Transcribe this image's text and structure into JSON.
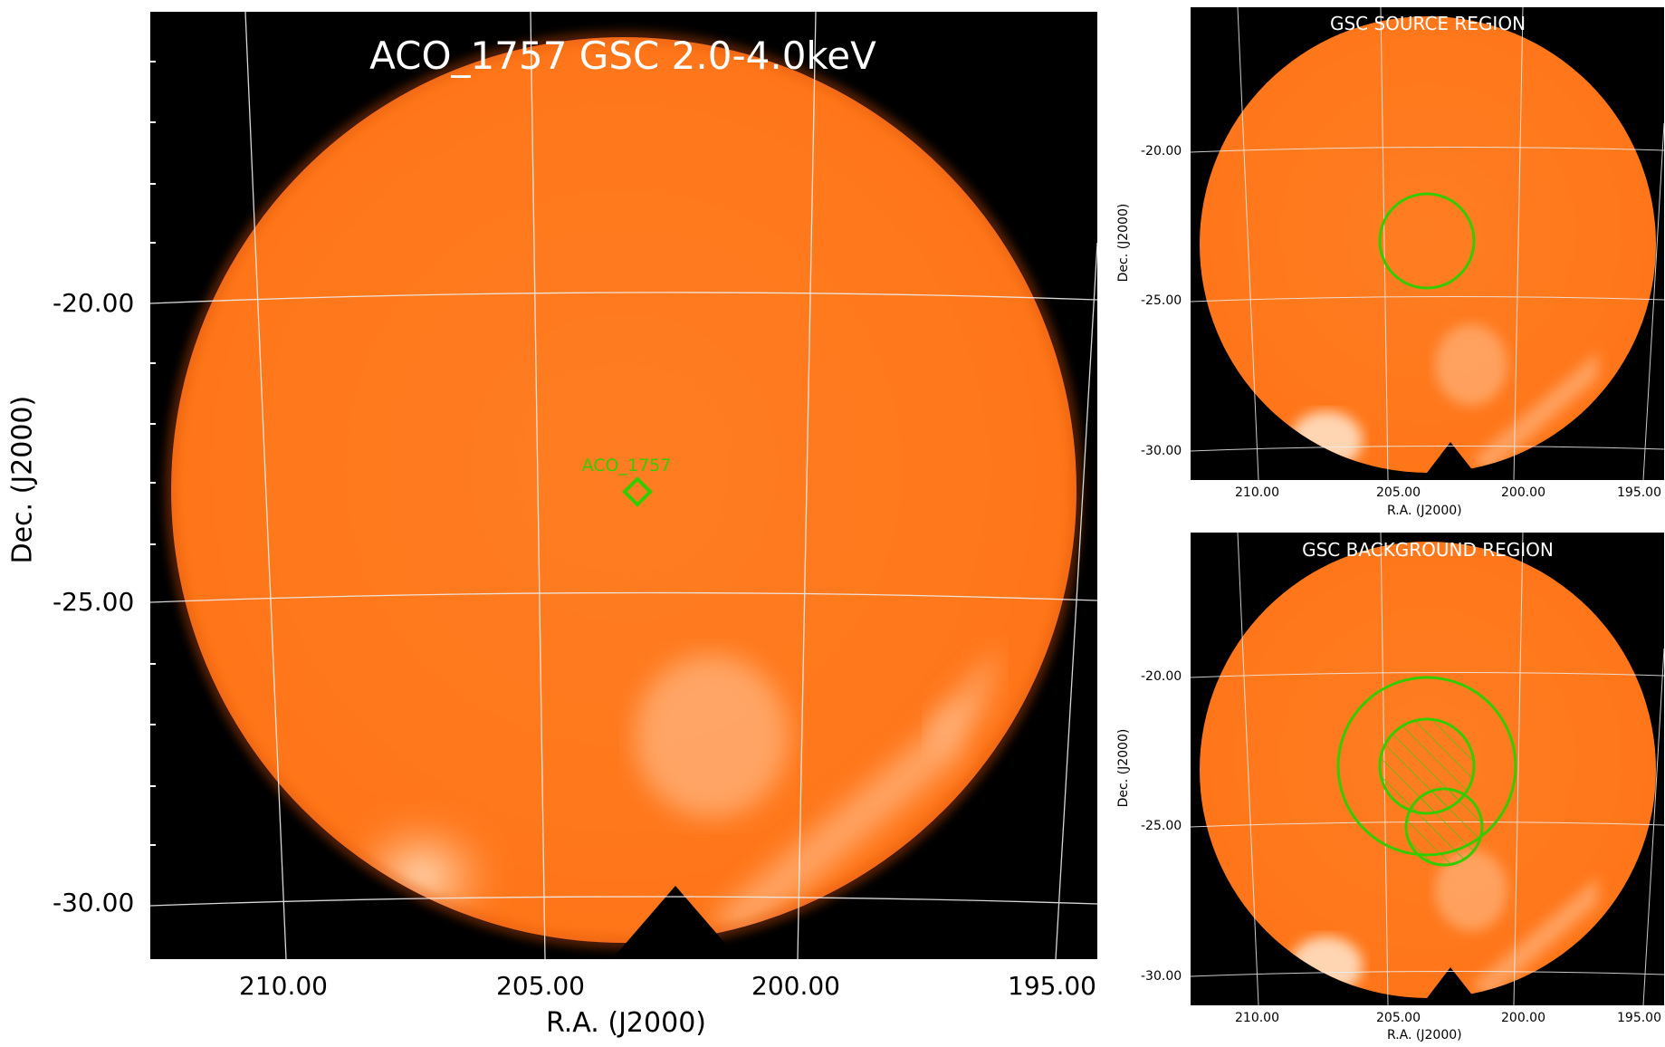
{
  "main_panel": {
    "title": "ACO_1757 GSC 2.0-4.0keV",
    "marker_label": "ACO_1757",
    "x_axis_label": "R.A. (J2000)",
    "y_axis_label": "Dec. (J2000)",
    "ra_ticks": [
      "210.00",
      "205.00",
      "200.00",
      "195.00"
    ],
    "dec_ticks": [
      "-20.00",
      "-25.00",
      "-30.00"
    ]
  },
  "source_panel": {
    "title": "GSC SOURCE REGION",
    "x_axis_label": "R.A. (J2000)",
    "y_axis_label": "Dec. (J2000)",
    "ra_ticks": [
      "210.00",
      "205.00",
      "200.00",
      "195.00"
    ],
    "dec_ticks": [
      "-20.00",
      "-25.00",
      "-30.00"
    ]
  },
  "background_panel": {
    "title": "GSC BACKGROUND REGION",
    "x_axis_label": "R.A. (J2000)",
    "y_axis_label": "Dec. (J2000)",
    "ra_ticks": [
      "210.00",
      "205.00",
      "200.00",
      "195.00"
    ],
    "dec_ticks": [
      "-20.00",
      "-25.00",
      "-30.00"
    ]
  },
  "colors": {
    "image_background": "#000000",
    "sky_orange": "#ff7a1f",
    "sky_edge": "#e35a0a",
    "bright_emission": "#ffd6b0",
    "region_green": "#33cc00",
    "grid": "#e8e8e8"
  }
}
